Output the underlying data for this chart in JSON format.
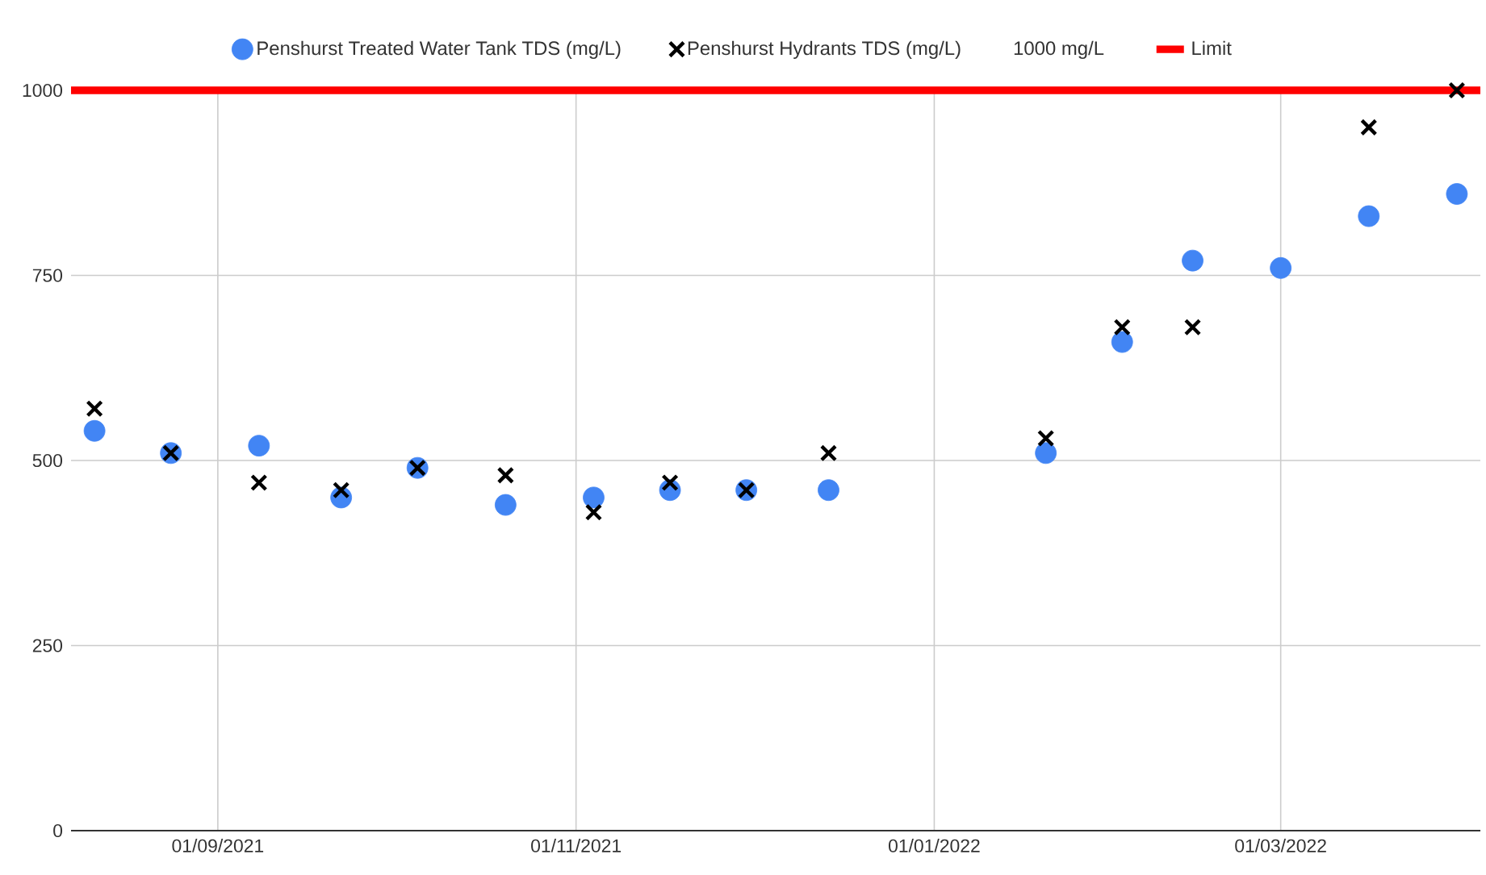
{
  "chart_data": {
    "type": "scatter",
    "x": [
      "2021-08-11",
      "2021-08-24",
      "2021-09-08",
      "2021-09-22",
      "2021-10-05",
      "2021-10-20",
      "2021-11-04",
      "2021-11-17",
      "2021-11-30",
      "2021-12-14",
      "2022-01-20",
      "2022-02-02",
      "2022-02-14",
      "2022-03-01",
      "2022-03-16",
      "2022-03-31"
    ],
    "series": [
      {
        "name": "Penshurst Treated Water Tank TDS (mg/L)",
        "color": "#4285f4",
        "marker": "circle",
        "values": [
          540,
          510,
          520,
          450,
          490,
          440,
          450,
          460,
          460,
          460,
          510,
          660,
          770,
          760,
          830,
          860
        ]
      },
      {
        "name": "Penshurst Hydrants TDS (mg/L)",
        "color": "#000000",
        "marker": "cross",
        "values": [
          570,
          510,
          470,
          460,
          490,
          480,
          430,
          470,
          460,
          510,
          530,
          680,
          680,
          null,
          950,
          1000
        ]
      },
      {
        "name": "Limit",
        "type": "line",
        "color": "#ff0000",
        "marker": "none",
        "x": [
          "2021-08-07",
          "2022-04-04"
        ],
        "values": [
          1000,
          1000
        ]
      }
    ],
    "annotations": [
      "1000 mg/L"
    ],
    "xlim": [
      "2021-08-07",
      "2022-04-04"
    ],
    "xticks": [
      {
        "value": "2021-09-01",
        "label": "01/09/2021"
      },
      {
        "value": "2021-11-01",
        "label": "01/11/2021"
      },
      {
        "value": "2022-01-01",
        "label": "01/01/2022"
      },
      {
        "value": "2022-03-01",
        "label": "01/03/2022"
      }
    ],
    "ylim": [
      0,
      1000
    ],
    "yticks": [
      0,
      250,
      500,
      750,
      1000
    ],
    "grid": true,
    "legend": "top"
  }
}
